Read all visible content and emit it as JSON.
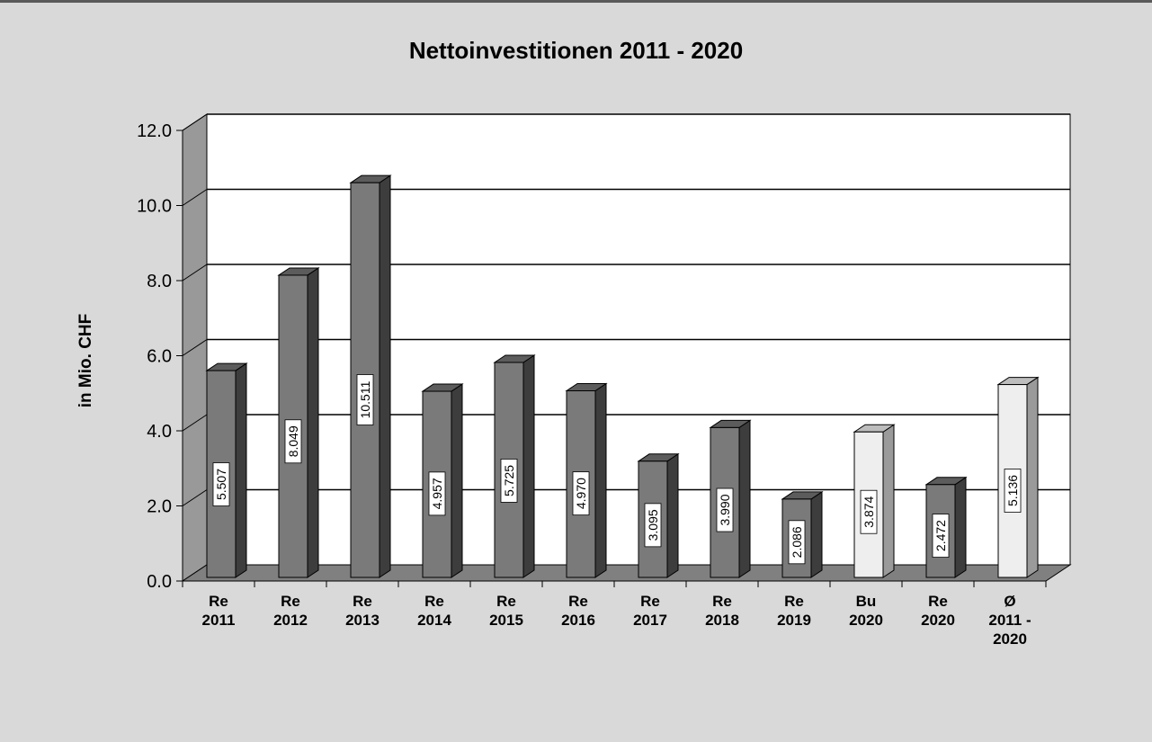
{
  "chart_data": {
    "type": "bar",
    "title": "Nettoinvestitionen 2011 - 2020",
    "ylabel": "in Mio. CHF",
    "xlabel": "",
    "ylim": [
      0,
      12
    ],
    "y_ticks": [
      "0.0",
      "2.0",
      "4.0",
      "6.0",
      "8.0",
      "10.0",
      "12.0"
    ],
    "categories": [
      [
        "Re",
        "2011"
      ],
      [
        "Re",
        "2012"
      ],
      [
        "Re",
        "2013"
      ],
      [
        "Re",
        "2014"
      ],
      [
        "Re",
        "2015"
      ],
      [
        "Re",
        "2016"
      ],
      [
        "Re",
        "2017"
      ],
      [
        "Re",
        "2018"
      ],
      [
        "Re",
        "2019"
      ],
      [
        "Bu",
        "2020"
      ],
      [
        "Re",
        "2020"
      ],
      [
        "Ø",
        "2011 -",
        "2020"
      ]
    ],
    "values": [
      5.507,
      8.049,
      10.511,
      4.957,
      5.725,
      4.97,
      3.095,
      3.99,
      2.086,
      3.874,
      2.472,
      5.136
    ],
    "value_labels": [
      "5.507",
      "8.049",
      "10.511",
      "4.957",
      "5.725",
      "4.970",
      "3.095",
      "3.990",
      "2.086",
      "3.874",
      "2.472",
      "5.136"
    ],
    "bar_styles": [
      "dark",
      "dark",
      "dark",
      "dark",
      "dark",
      "dark",
      "dark",
      "dark",
      "dark",
      "light",
      "dark",
      "light"
    ],
    "grid": true,
    "legend": "none",
    "colors": {
      "dark_front": "#7a7a7a",
      "dark_top": "#5c5c5c",
      "dark_side": "#3d3d3d",
      "light_front": "#eeeeee",
      "light_top": "#bdbdbd",
      "light_side": "#9a9a9a",
      "plot_back": "#ffffff",
      "plot_wall": "#999999",
      "plot_floor": "#808080",
      "frame_bg": "#d9d9d9"
    }
  }
}
